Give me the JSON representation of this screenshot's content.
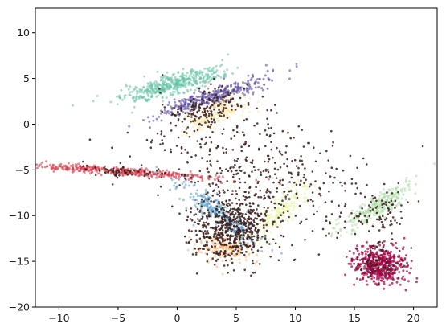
{
  "chart_data": {
    "type": "scatter",
    "title": "",
    "xlabel": "",
    "ylabel": "",
    "xlim": [
      -12,
      22
    ],
    "ylim": [
      -20,
      12.7
    ],
    "xticks": [
      -10,
      -5,
      0,
      5,
      10,
      15,
      20
    ],
    "yticks": [
      -20,
      -15,
      -10,
      -5,
      0,
      5,
      10
    ],
    "grid": false,
    "legend": "none",
    "colors": {
      "mint": "#66c2a5",
      "purple": "#5e4fa2",
      "yellow": "#fee08b",
      "red": "#d53e4f",
      "blue": "#3288bd",
      "orange": "#fdae61",
      "lime": "#e6f598",
      "green": "#abdda4",
      "magenta": "#9e0142",
      "dark": "#3b1f1a"
    },
    "series": [
      {
        "color_key": "mint",
        "cluster": {
          "cx": -0.3,
          "cy": 4.3,
          "sx": 2.2,
          "sy": 0.55,
          "angle": 20,
          "n": 450,
          "alpha": 0.55
        }
      },
      {
        "color_key": "purple",
        "cluster": {
          "cx": 2.8,
          "cy": 2.9,
          "sx": 2.6,
          "sy": 0.45,
          "angle": 24,
          "n": 350,
          "alpha": 0.6
        }
      },
      {
        "color_key": "yellow",
        "cluster": {
          "cx": 3.4,
          "cy": 1.4,
          "sx": 1.4,
          "sy": 0.7,
          "angle": 35,
          "n": 180,
          "alpha": 0.45
        }
      },
      {
        "color_key": "red",
        "cluster": {
          "cx": -5.2,
          "cy": -5.1,
          "sx": 4.2,
          "sy": 0.22,
          "angle": -5,
          "n": 400,
          "alpha": 0.6
        }
      },
      {
        "color_key": "blue",
        "cluster": {
          "cx": 3.6,
          "cy": -9.8,
          "sx": 2.4,
          "sy": 0.6,
          "angle": -45,
          "n": 260,
          "alpha": 0.45
        }
      },
      {
        "color_key": "orange",
        "cluster": {
          "cx": 4.3,
          "cy": -13.6,
          "sx": 1.2,
          "sy": 0.7,
          "angle": 0,
          "n": 150,
          "alpha": 0.5
        }
      },
      {
        "color_key": "lime",
        "cluster": {
          "cx": 8.6,
          "cy": -9.6,
          "sx": 1.7,
          "sy": 0.55,
          "angle": 55,
          "n": 180,
          "alpha": 0.5
        }
      },
      {
        "color_key": "green",
        "cluster": {
          "cx": 17.0,
          "cy": -9.0,
          "sx": 2.0,
          "sy": 0.5,
          "angle": 40,
          "n": 260,
          "alpha": 0.55
        }
      },
      {
        "color_key": "magenta",
        "cluster": {
          "cx": 17.1,
          "cy": -15.4,
          "sx": 1.2,
          "sy": 0.95,
          "angle": -30,
          "n": 450,
          "alpha": 0.7
        }
      },
      {
        "color_key": "dark",
        "cluster": {
          "cx": 4.5,
          "cy": -11.5,
          "sx": 1.6,
          "sy": 1.8,
          "angle": 0,
          "n": 550,
          "alpha": 0.85
        }
      },
      {
        "color_key": "dark",
        "cluster": {
          "cx": 2.9,
          "cy": 1.9,
          "sx": 1.7,
          "sy": 0.9,
          "angle": 25,
          "n": 140,
          "alpha": 0.85
        }
      },
      {
        "color_key": "dark",
        "cluster": {
          "cx": -4.5,
          "cy": -5.1,
          "sx": 2.0,
          "sy": 0.35,
          "angle": -5,
          "n": 60,
          "alpha": 0.85
        }
      },
      {
        "color_key": "dark",
        "cluster": {
          "cx": 16.9,
          "cy": -9.5,
          "sx": 1.2,
          "sy": 1.2,
          "angle": 40,
          "n": 70,
          "alpha": 0.85
        }
      },
      {
        "color_key": "dark",
        "cluster": {
          "cx": 17.0,
          "cy": -15.0,
          "sx": 1.0,
          "sy": 1.0,
          "angle": 0,
          "n": 60,
          "alpha": 0.85
        }
      },
      {
        "color_key": "dark",
        "cluster": {
          "cx": 8.0,
          "cy": -6.0,
          "sx": 4.5,
          "sy": 3.2,
          "angle": -20,
          "n": 380,
          "alpha": 0.85
        }
      },
      {
        "color_key": "dark",
        "cluster": {
          "cx": 2.0,
          "cy": -2.0,
          "sx": 3.0,
          "sy": 3.0,
          "angle": 0,
          "n": 70,
          "alpha": 0.85
        }
      }
    ]
  }
}
